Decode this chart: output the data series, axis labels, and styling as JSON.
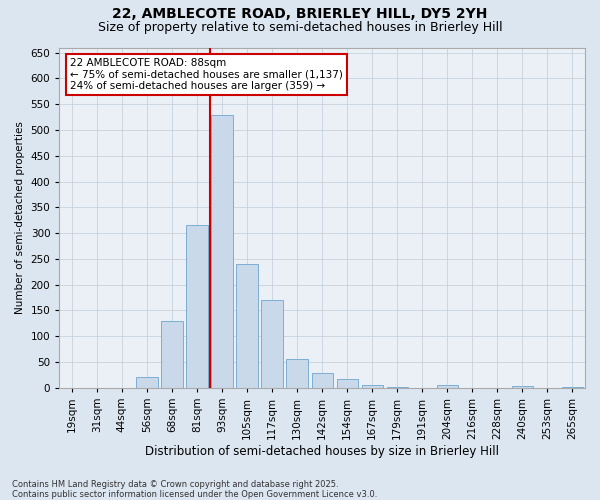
{
  "title": "22, AMBLECOTE ROAD, BRIERLEY HILL, DY5 2YH",
  "subtitle": "Size of property relative to semi-detached houses in Brierley Hill",
  "xlabel": "Distribution of semi-detached houses by size in Brierley Hill",
  "ylabel": "Number of semi-detached properties",
  "categories": [
    "19sqm",
    "31sqm",
    "44sqm",
    "56sqm",
    "68sqm",
    "81sqm",
    "93sqm",
    "105sqm",
    "117sqm",
    "130sqm",
    "142sqm",
    "154sqm",
    "167sqm",
    "179sqm",
    "191sqm",
    "204sqm",
    "216sqm",
    "228sqm",
    "240sqm",
    "253sqm",
    "265sqm"
  ],
  "values": [
    0,
    0,
    0,
    20,
    130,
    315,
    530,
    240,
    170,
    55,
    28,
    18,
    5,
    2,
    0,
    5,
    0,
    0,
    3,
    0,
    2
  ],
  "bar_color": "#c9d9ea",
  "bar_edge_color": "#7bafd4",
  "vline_x_idx": 6,
  "vline_color": "#cc0000",
  "annotation_text": "22 AMBLECOTE ROAD: 88sqm\n← 75% of semi-detached houses are smaller (1,137)\n24% of semi-detached houses are larger (359) →",
  "annotation_box_facecolor": "#ffffff",
  "annotation_box_edgecolor": "#cc0000",
  "ylim": [
    0,
    660
  ],
  "yticks": [
    0,
    50,
    100,
    150,
    200,
    250,
    300,
    350,
    400,
    450,
    500,
    550,
    600,
    650
  ],
  "background_color": "#dce6f0",
  "plot_bg_color": "#eaf0f6",
  "grid_color": "#c0cdd8",
  "footer": "Contains HM Land Registry data © Crown copyright and database right 2025.\nContains public sector information licensed under the Open Government Licence v3.0.",
  "title_fontsize": 10,
  "subtitle_fontsize": 9,
  "xlabel_fontsize": 8.5,
  "ylabel_fontsize": 7.5,
  "tick_fontsize": 7.5,
  "annotation_fontsize": 7.5,
  "footer_fontsize": 6
}
